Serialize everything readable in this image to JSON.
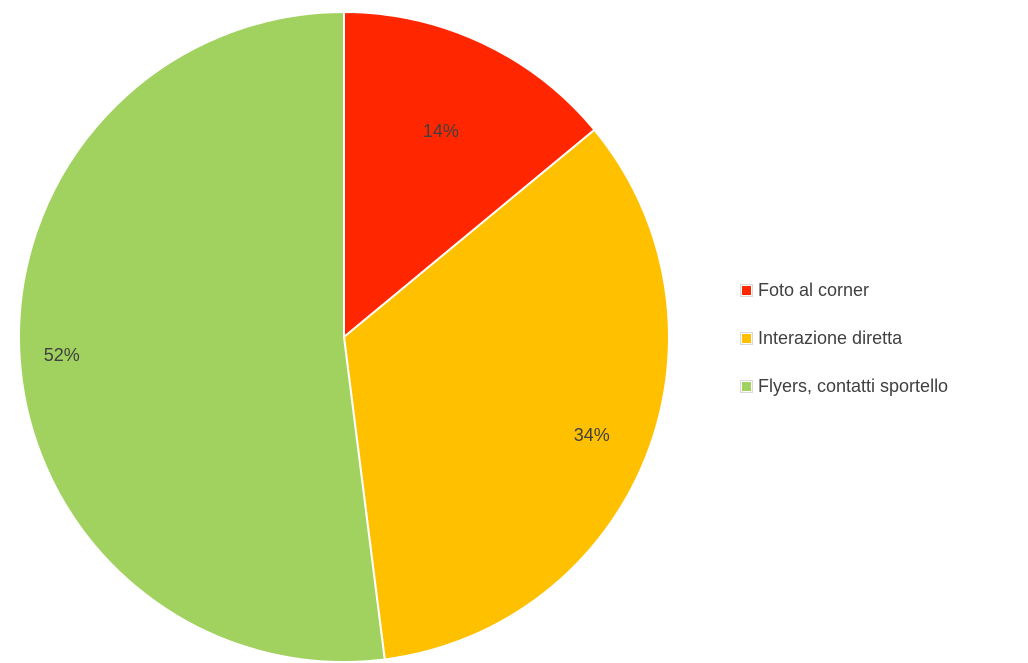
{
  "chart_data": {
    "type": "pie",
    "categories": [
      "Foto al corner",
      "Interazione diretta",
      "Flyers, contatti sportello"
    ],
    "values": [
      14,
      34,
      52
    ],
    "data_labels": [
      "14%",
      "34%",
      "52%"
    ],
    "colors": [
      "#ff2600",
      "#ffc000",
      "#a1d15f"
    ],
    "title": "",
    "legend_position": "right",
    "start_angle": "top, clockwise"
  },
  "legend": {
    "items": [
      {
        "label": "Foto al corner"
      },
      {
        "label": "Interazione diretta"
      },
      {
        "label": "Flyers, contatti sportello"
      }
    ]
  }
}
